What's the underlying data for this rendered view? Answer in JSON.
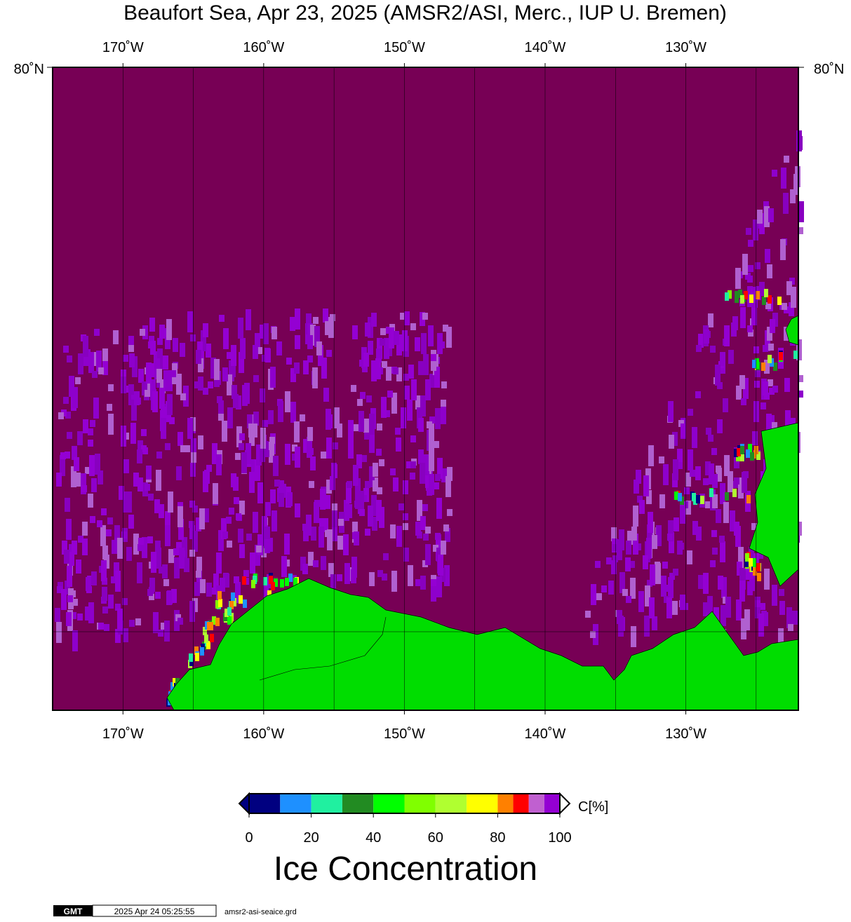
{
  "title": "Beaufort Sea, Apr 23, 2025 (AMSR2/ASI, Merc., IUP U. Bremen)",
  "map": {
    "lon_range": [
      -175,
      -122
    ],
    "lon_ticks": [
      {
        "value": -170,
        "label": "170˚W"
      },
      {
        "value": -160,
        "label": "160˚W"
      },
      {
        "value": -150,
        "label": "150˚W"
      },
      {
        "value": -140,
        "label": "140˚W"
      },
      {
        "value": -130,
        "label": "130˚W"
      }
    ],
    "lon_gridlines": [
      -165,
      -155,
      -145,
      -135,
      -125
    ],
    "lat_label": {
      "value": 80,
      "label": "80˚N"
    },
    "ocean_color": "#770055",
    "land_color": "#00dd00"
  },
  "colorbar": {
    "bounds": [
      0,
      10,
      20,
      30,
      40,
      50,
      60,
      70,
      80,
      85,
      90,
      95,
      100
    ],
    "colors": [
      "#000080",
      "#1e90ff",
      "#20f0a0",
      "#228b22",
      "#00ff00",
      "#80ff00",
      "#b0ff30",
      "#ffff00",
      "#ff8000",
      "#ff0000",
      "#c060d0",
      "#9400d3"
    ],
    "ticks": [
      0,
      20,
      40,
      60,
      80,
      100
    ],
    "unit_label": "C[%]",
    "title": "Ice Concentration"
  },
  "footer": {
    "logo": "GMT",
    "timestamp": "2025 Apr 24 05:25:55",
    "file": "amsr2-asi-seaice.grd"
  }
}
